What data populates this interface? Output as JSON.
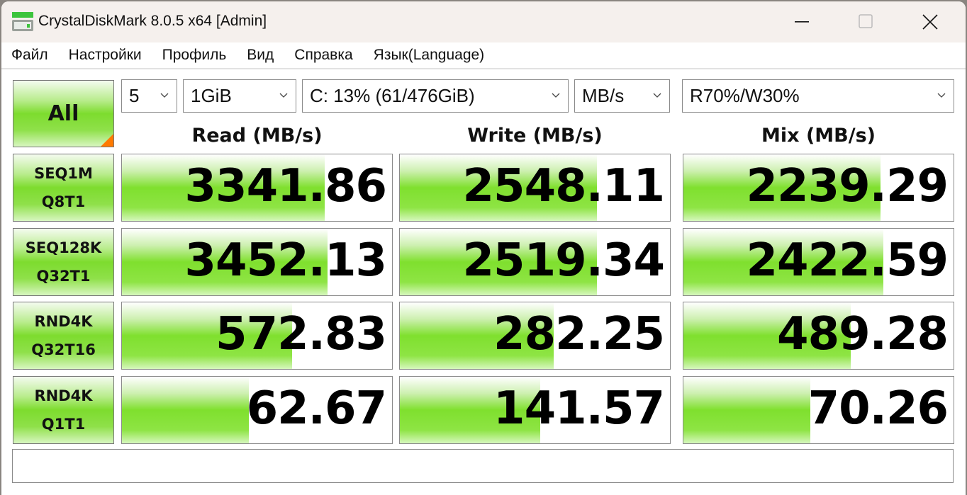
{
  "window": {
    "title": "CrystalDiskMark 8.0.5 x64 [Admin]"
  },
  "menu": [
    "Файл",
    "Настройки",
    "Профиль",
    "Вид",
    "Справка",
    "Язык(Language)"
  ],
  "controls": {
    "all_label": "All",
    "count": "5",
    "size": "1GiB",
    "drive": "C: 13% (61/476GiB)",
    "unit": "MB/s",
    "mix": "R70%/W30%"
  },
  "headers": {
    "read": "Read (MB/s)",
    "write": "Write (MB/s)",
    "mix": "Mix (MB/s)"
  },
  "accent_colors": {
    "bar_green": "#7fe02e",
    "corner_orange": "#ff7a00"
  },
  "rows": [
    {
      "l1": "SEQ1M",
      "l2": "Q8T1",
      "read": "3341.86",
      "write": "2548.11",
      "mix": "2239.29",
      "fill": [
        0.75,
        0.73,
        0.73
      ]
    },
    {
      "l1": "SEQ128K",
      "l2": "Q32T1",
      "read": "3452.13",
      "write": "2519.34",
      "mix": "2422.59",
      "fill": [
        0.76,
        0.73,
        0.74
      ]
    },
    {
      "l1": "RND4K",
      "l2": "Q32T16",
      "read": "572.83",
      "write": "282.25",
      "mix": "489.28",
      "fill": [
        0.63,
        0.57,
        0.62
      ]
    },
    {
      "l1": "RND4K",
      "l2": "Q1T1",
      "read": "62.67",
      "write": "141.57",
      "mix": "70.26",
      "fill": [
        0.47,
        0.52,
        0.47
      ]
    }
  ],
  "status": ""
}
